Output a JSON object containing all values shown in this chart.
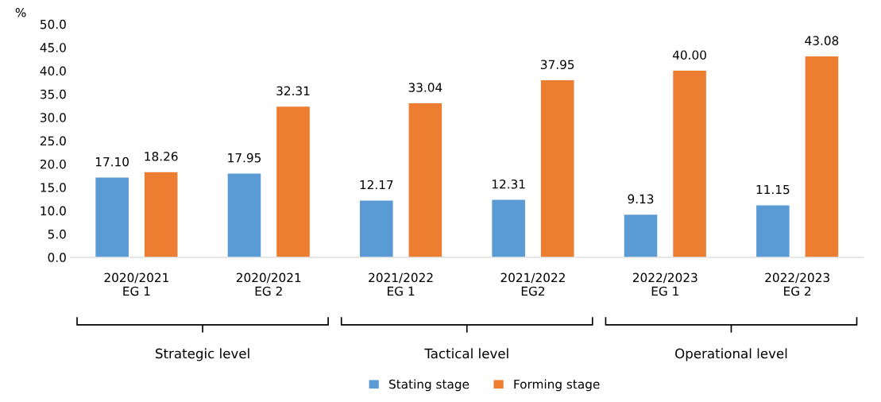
{
  "chart_data": {
    "type": "bar",
    "ylabel": "%",
    "categories": [
      "2020/2021\nEG 1",
      "2020/2021\nEG 2",
      "2021/2022\nEG 1",
      "2021/2022\nEG2",
      "2022/2023\nEG 1",
      "2022/2023\nEG 2"
    ],
    "series": [
      {
        "name": "Stating stage",
        "color": "#5b9bd5",
        "values": [
          17.1,
          17.95,
          12.17,
          12.31,
          9.13,
          11.15
        ],
        "value_labels": [
          "17.10",
          "17.95",
          "12.17",
          "12.31",
          "9.13",
          "11.15"
        ]
      },
      {
        "name": "Forming stage",
        "color": "#ed7d31",
        "values": [
          18.26,
          32.31,
          33.04,
          37.95,
          40.0,
          43.08
        ],
        "value_labels": [
          "18.26",
          "32.31",
          "33.04",
          "37.95",
          "40.00",
          "43.08"
        ]
      }
    ],
    "ylim": [
      0,
      50
    ],
    "yticks": [
      {
        "value": 0,
        "label": "0.0"
      },
      {
        "value": 5,
        "label": "5.0"
      },
      {
        "value": 10,
        "label": "10.0"
      },
      {
        "value": 15,
        "label": "15.0"
      },
      {
        "value": 20,
        "label": "20.0"
      },
      {
        "value": 25,
        "label": "25.0"
      },
      {
        "value": 30,
        "label": "30.0"
      },
      {
        "value": 35,
        "label": "35.0"
      },
      {
        "value": 40,
        "label": "40.0"
      },
      {
        "value": 45,
        "label": "45.0"
      },
      {
        "value": 50,
        "label": "50.0"
      }
    ],
    "grid": false,
    "legend": "bottom",
    "annotations": [
      "Strategic level",
      "Tactical level",
      "Operational level"
    ]
  }
}
